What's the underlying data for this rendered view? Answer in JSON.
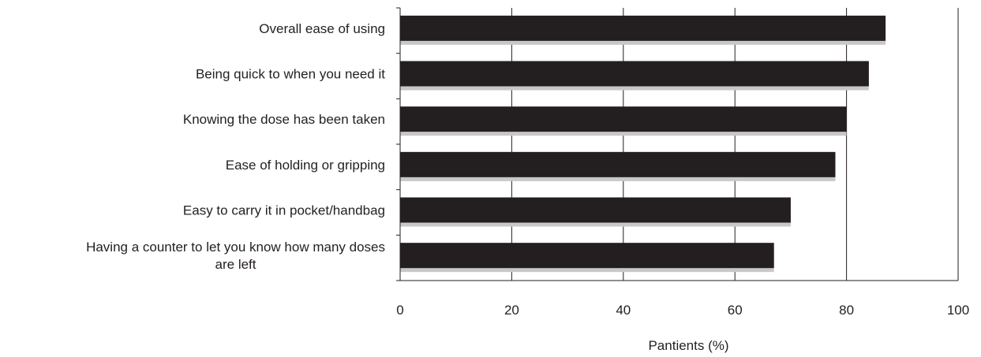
{
  "chart_data": {
    "type": "bar",
    "orientation": "horizontal",
    "categories": [
      "Overall ease of using",
      "Being quick to when you need it",
      "Knowing the dose has been taken",
      "Ease of holding or gripping",
      "Easy to carry it in pocket/handbag",
      "Having a counter to let you know how many doses are left"
    ],
    "category_label_lines": [
      [
        "Overall ease of using"
      ],
      [
        "Being quick to when you need it"
      ],
      [
        "Knowing the dose has been taken"
      ],
      [
        "Ease of holding or gripping"
      ],
      [
        "Easy to carry it in pocket/handbag"
      ],
      [
        "Having a counter to let you know how many doses",
        "are left"
      ]
    ],
    "values": [
      87,
      84,
      80,
      78,
      70,
      67
    ],
    "xlabel": "Pantients (%)",
    "ylabel": "",
    "xlim": [
      0,
      100
    ],
    "xticks": [
      "0",
      "20",
      "40",
      "60",
      "80",
      "100"
    ],
    "grid": "vertical",
    "bar_color": "#231f20",
    "shadow_color": "#c8c8c8"
  }
}
